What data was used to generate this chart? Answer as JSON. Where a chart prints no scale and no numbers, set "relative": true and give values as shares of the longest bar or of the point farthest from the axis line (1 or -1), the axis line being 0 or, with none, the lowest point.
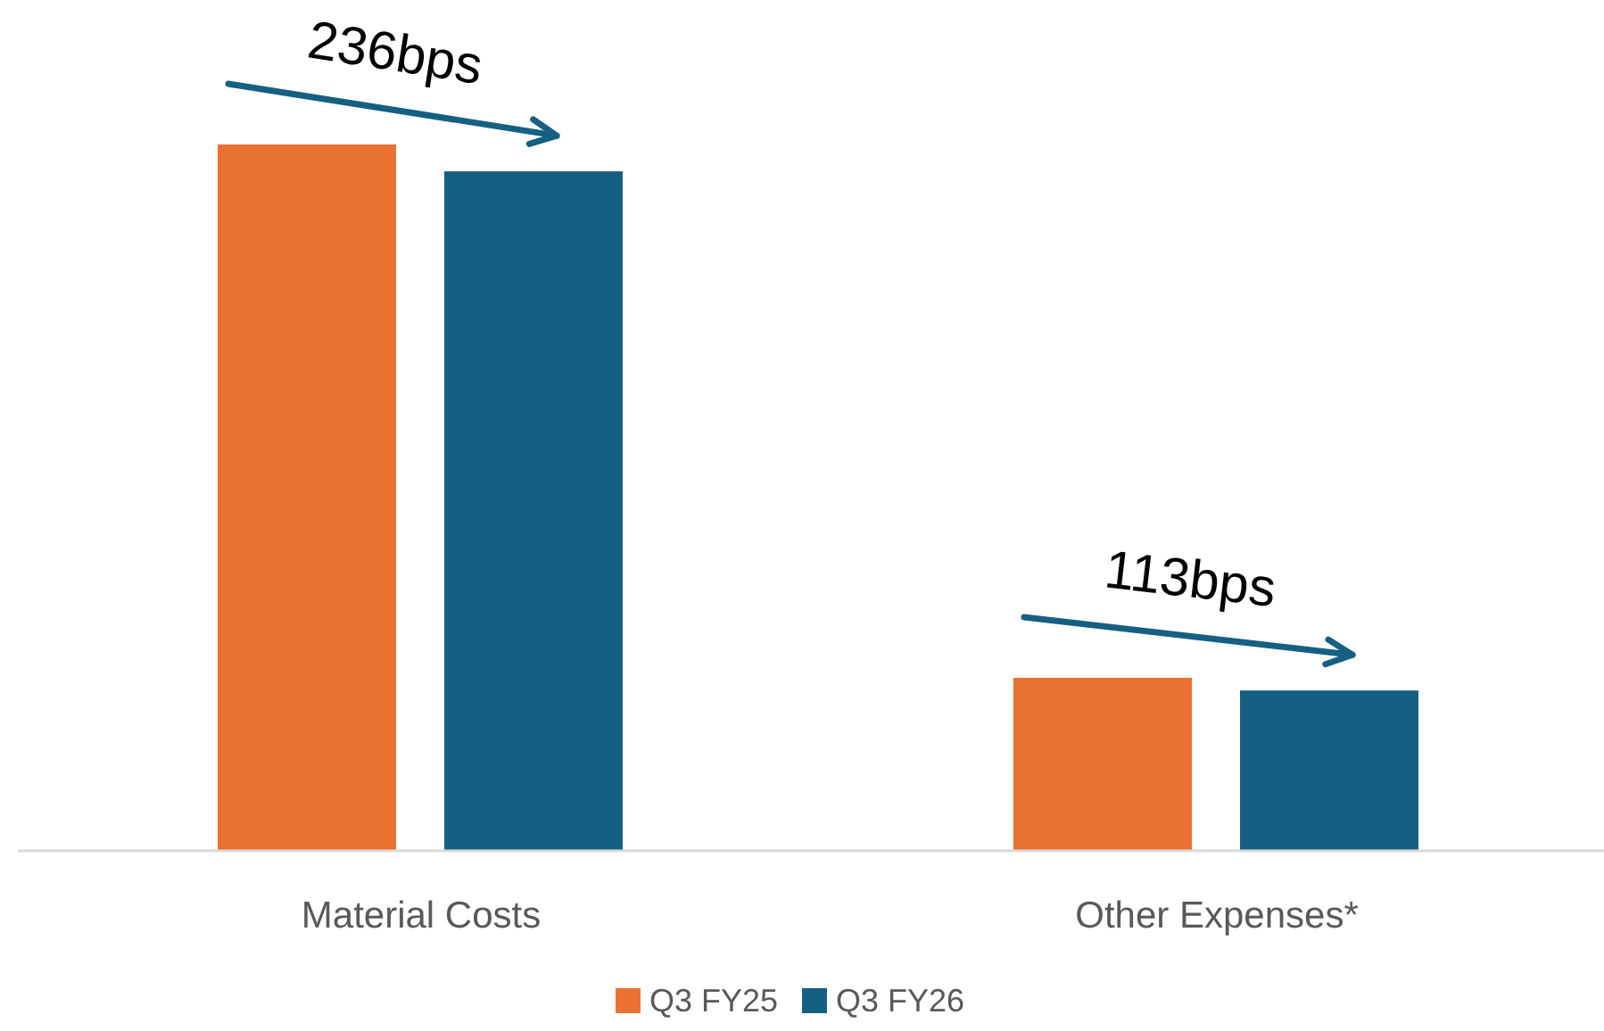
{
  "chart_data": {
    "type": "bar",
    "relative": true,
    "categories": [
      "Material Costs",
      "Other Expenses*"
    ],
    "series": [
      {
        "name": "Q3 FY25",
        "color": "#e97132",
        "values": [
          1,
          0.245
        ]
      },
      {
        "name": "Q3 FY26",
        "color": "#156082",
        "values": [
          0.962,
          0.227
        ]
      }
    ],
    "annotations": [
      "236bps",
      "113bps"
    ],
    "legend": "bottom"
  }
}
